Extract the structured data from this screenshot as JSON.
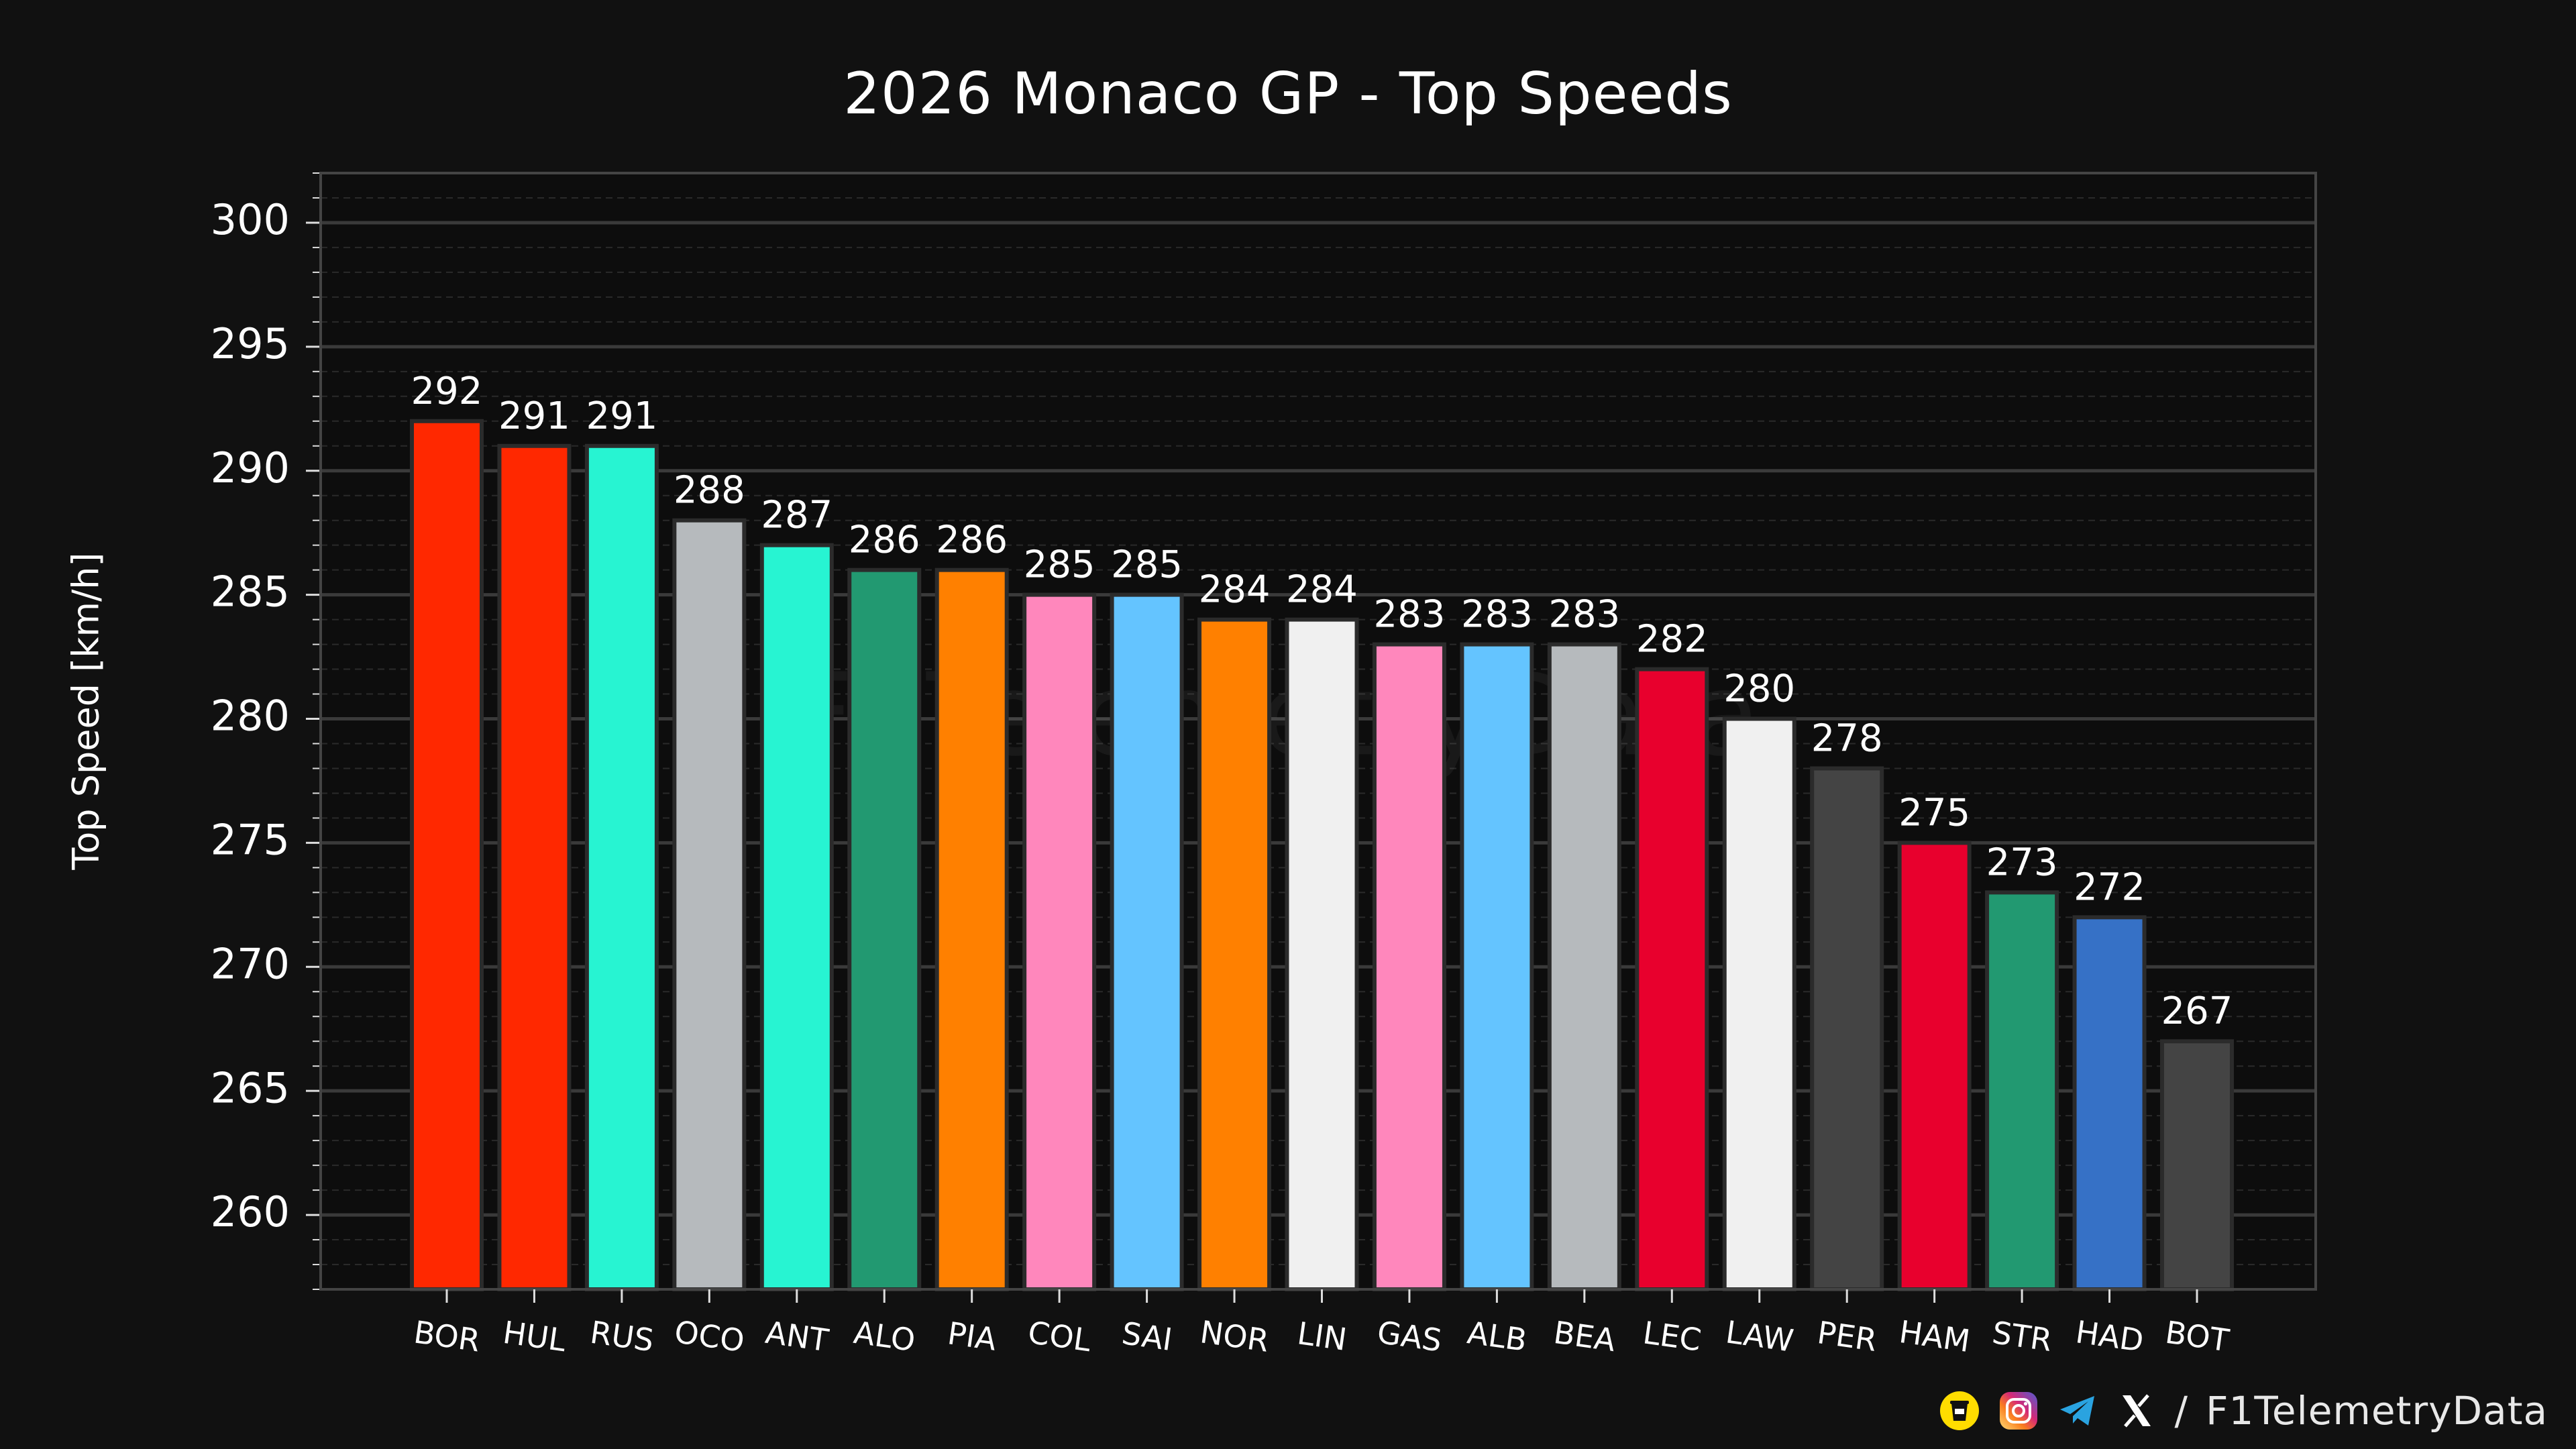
{
  "chart_data": {
    "type": "bar",
    "title": "2026 Monaco GP - Top Speeds",
    "xlabel": "",
    "ylabel": "Top Speed [km/h]",
    "ylim": [
      257,
      302
    ],
    "yticks": [
      260,
      265,
      270,
      275,
      280,
      285,
      290,
      295,
      300
    ],
    "grid": true,
    "categories": [
      "BOR",
      "HUL",
      "RUS",
      "OCO",
      "ANT",
      "ALO",
      "PIA",
      "COL",
      "SAI",
      "NOR",
      "LIN",
      "GAS",
      "ALB",
      "BEA",
      "LEC",
      "LAW",
      "PER",
      "HAM",
      "STR",
      "HAD",
      "BOT"
    ],
    "values": [
      292,
      291,
      291,
      288,
      287,
      286,
      286,
      285,
      285,
      284,
      284,
      283,
      283,
      283,
      282,
      280,
      278,
      275,
      273,
      272,
      267
    ],
    "data_labels": [
      "292",
      "291",
      "291",
      "288",
      "287",
      "286",
      "286",
      "285",
      "285",
      "284",
      "284",
      "283",
      "283",
      "283",
      "282",
      "280",
      "278",
      "275",
      "273",
      "272",
      "267"
    ],
    "bar_colors": [
      "#ff2800",
      "#ff2800",
      "#27f4d2",
      "#b6babd",
      "#27f4d2",
      "#229971",
      "#ff8000",
      "#ff87bc",
      "#64c4ff",
      "#ff8000",
      "#f0f0f0",
      "#ff87bc",
      "#64c4ff",
      "#b6babd",
      "#e8002d",
      "#f0f0f0",
      "#444444",
      "#e8002d",
      "#229971",
      "#3671c6",
      "#444444"
    ]
  },
  "watermark": "F1TelemetryData",
  "footer": {
    "separator": "/",
    "handle": "F1TelemetryData",
    "icons": [
      "coffee-cup-icon",
      "instagram-icon",
      "telegram-icon",
      "x-icon"
    ]
  },
  "colors": {
    "background": "#111111",
    "plot_background": "#0d0d0d",
    "grid_major": "#3a3a3a",
    "grid_minor": "#2a2a2a",
    "text": "#ffffff"
  }
}
